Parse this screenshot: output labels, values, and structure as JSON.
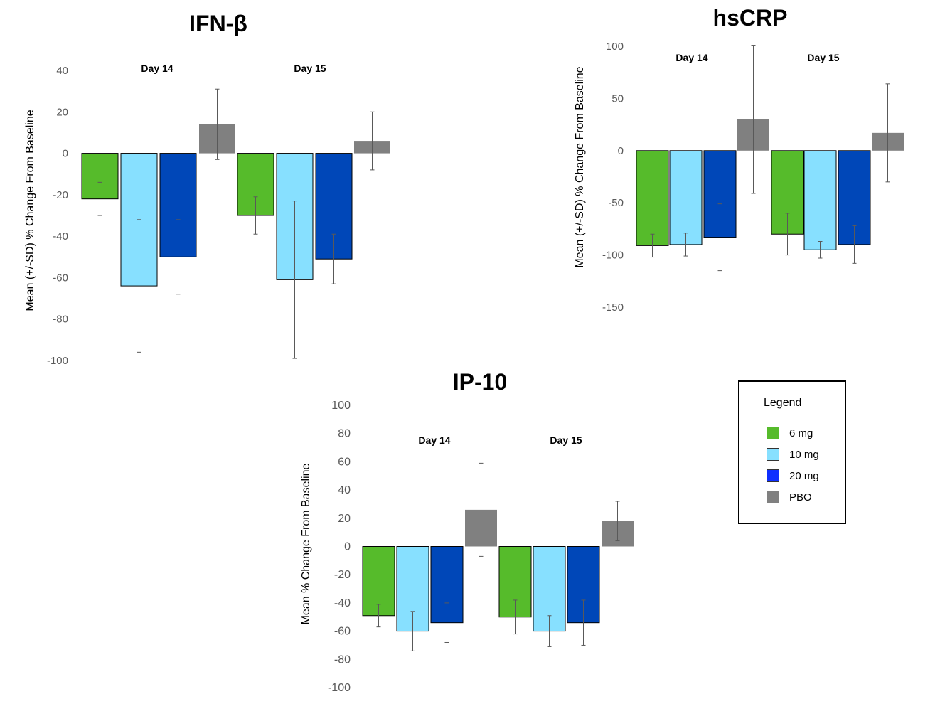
{
  "legend": {
    "title": "Legend",
    "items": [
      {
        "label": "6 mg",
        "color": "#56bb2b"
      },
      {
        "label": "10 mg",
        "color": "#87e0ff"
      },
      {
        "label": "20 mg",
        "color": "#0f2fff"
      },
      {
        "label": "PBO",
        "color": "#808080"
      }
    ]
  },
  "chart_data": [
    {
      "type": "bar",
      "title": "IFN-β",
      "ylabel": "Mean (+/-SD) % Change From Baseline",
      "ylim": [
        -100,
        40
      ],
      "yticks": [
        40,
        20,
        0,
        -20,
        -40,
        -60,
        -80,
        -100
      ],
      "groups": [
        "Day 14",
        "Day 15"
      ],
      "series": [
        {
          "name": "6 mg",
          "color": "#56bb2b",
          "values": [
            -22,
            -30
          ],
          "errors": [
            8,
            9
          ]
        },
        {
          "name": "10 mg",
          "color": "#87e0ff",
          "values": [
            -64,
            -61
          ],
          "errors": [
            32,
            38
          ]
        },
        {
          "name": "20 mg",
          "color": "#0047b8",
          "values": [
            -50,
            -51
          ],
          "errors": [
            18,
            12
          ]
        },
        {
          "name": "PBO",
          "color": "#808080",
          "values": [
            14,
            6
          ],
          "errors": [
            17,
            14
          ]
        }
      ]
    },
    {
      "type": "bar",
      "title": "hsCRP",
      "ylabel": "Mean (+/-SD) % Change From Baseline",
      "ylim": [
        -150,
        100
      ],
      "yticks": [
        100,
        50,
        0,
        -50,
        -100,
        -150
      ],
      "groups": [
        "Day 14",
        "Day 15"
      ],
      "series": [
        {
          "name": "6 mg",
          "color": "#56bb2b",
          "values": [
            -91,
            -80
          ],
          "errors": [
            11,
            20
          ]
        },
        {
          "name": "10 mg",
          "color": "#87e0ff",
          "values": [
            -90,
            -95
          ],
          "errors": [
            11,
            8
          ]
        },
        {
          "name": "20 mg",
          "color": "#0047b8",
          "values": [
            -83,
            -90
          ],
          "errors": [
            32,
            18
          ]
        },
        {
          "name": "PBO",
          "color": "#808080",
          "values": [
            30,
            17
          ],
          "errors": [
            71,
            47
          ]
        }
      ]
    },
    {
      "type": "bar",
      "title": "IP-10",
      "ylabel": "Mean % Change From Baseline",
      "ylim": [
        -100,
        100
      ],
      "yticks": [
        100,
        80,
        60,
        40,
        20,
        0,
        -20,
        -40,
        -60,
        -80,
        -100
      ],
      "groups": [
        "Day 14",
        "Day 15"
      ],
      "series": [
        {
          "name": "6 mg",
          "color": "#56bb2b",
          "values": [
            -49,
            -50
          ],
          "errors": [
            8,
            12
          ]
        },
        {
          "name": "10 mg",
          "color": "#87e0ff",
          "values": [
            -60,
            -60
          ],
          "errors": [
            14,
            11
          ]
        },
        {
          "name": "20 mg",
          "color": "#0047b8",
          "values": [
            -54,
            -54
          ],
          "errors": [
            14,
            16
          ]
        },
        {
          "name": "PBO",
          "color": "#808080",
          "values": [
            26,
            18
          ],
          "errors": [
            33,
            14
          ]
        }
      ]
    }
  ]
}
